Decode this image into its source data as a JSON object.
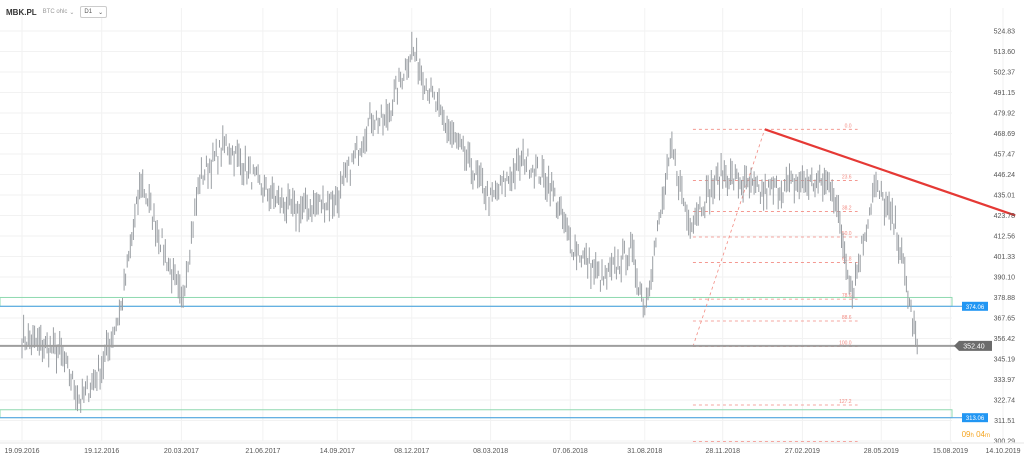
{
  "toolbar": {
    "symbol": "MBK.PL",
    "chart_type": "BTC ohlc",
    "interval": "D1"
  },
  "countdown": {
    "hours": "09",
    "h_unit": "h",
    "minutes": "04",
    "m_unit": "m"
  },
  "colors": {
    "price": "#9a9ea3",
    "zone_green": "#8fd9b0",
    "zone_blue": "#5aa8e6",
    "label_blue": "#2196f3",
    "trendline": "#e53935",
    "fib": "#f28b82",
    "current": "#9e9e9e",
    "countdown": "#f5a623"
  },
  "chart_data": {
    "type": "line",
    "title": "",
    "xlabel": "",
    "ylabel": "",
    "ylim": [
      300.29,
      530
    ],
    "x_tick_labels": [
      "19.09.2016",
      "19.12.2016",
      "20.03.2017",
      "21.06.2017",
      "14.09.2017",
      "08.12.2017",
      "08.03.2018",
      "07.06.2018",
      "31.08.2018",
      "28.11.2018",
      "27.02.2019",
      "28.05.2019",
      "15.08.2019",
      "14.10.2019"
    ],
    "y_ticks": [
      524.83,
      513.6,
      502.37,
      491.15,
      479.92,
      468.69,
      457.47,
      446.24,
      435.01,
      423.78,
      412.56,
      401.33,
      390.1,
      378.88,
      367.65,
      356.42,
      345.19,
      333.97,
      322.74,
      311.51,
      300.29
    ],
    "y_tick_labels": [
      "524.83",
      "513.60",
      "502.37",
      "491.15",
      "479.92",
      "468.69",
      "457.47",
      "446.24",
      "435.01",
      "423.78",
      "412.56",
      "401.33",
      "390.10",
      "378.88",
      "367.65",
      "356.42",
      "345.19",
      "333.97",
      "322.74",
      "311.51",
      "300.29"
    ],
    "series": [
      {
        "x": [
          "19.09.2016",
          "01.11.2016",
          "25.11.2016",
          "19.12.2016",
          "10.01.2017",
          "02.02.2017",
          "20.03.2017",
          "10.04.2017",
          "10.05.2017",
          "21.06.2017",
          "27.07.2017",
          "14.09.2017",
          "23.10.2017",
          "07.11.2017",
          "08.12.2017",
          "10.01.2018",
          "08.03.2018",
          "16.04.2018",
          "15.05.2018",
          "07.06.2018",
          "15.07.2018",
          "15.08.2018",
          "31.08.2018",
          "01.10.2018",
          "20.10.2018",
          "28.11.2018",
          "10.01.2019",
          "27.02.2019",
          "02.04.2019",
          "25.04.2019",
          "20.05.2019",
          "28.05.2019",
          "15.06.2019",
          "01.07.2019",
          "08.07.2019"
        ],
        "values": [
          357,
          349,
          322,
          341,
          373,
          443,
          376,
          444,
          463,
          438,
          426,
          433,
          478,
          474,
          515,
          478,
          432,
          455,
          441,
          409,
          388,
          405,
          374,
          460,
          420,
          447,
          436,
          442,
          441,
          382,
          439,
          434,
          415,
          371,
          352
        ]
      }
    ],
    "zones": [
      {
        "low": 374.06,
        "high": 378.9,
        "label": "374.06"
      },
      {
        "low": 313.06,
        "high": 317.4,
        "label": "313.06"
      }
    ],
    "current_price": {
      "value": 352.4,
      "label": "352.40"
    },
    "trendline": {
      "from": [
        "15.01.2019",
        471.0
      ],
      "to": [
        "28.10.2019",
        423.8
      ]
    },
    "fibonacci": {
      "levels": [
        {
          "label": "0.0",
          "value": 471.0
        },
        {
          "label": "23.6",
          "value": 443.0
        },
        {
          "label": "38.2",
          "value": 426.0
        },
        {
          "label": "50.0",
          "value": 412.0
        },
        {
          "label": "61.8",
          "value": 398.0
        },
        {
          "label": "78.6",
          "value": 378.0
        },
        {
          "label": "88.6",
          "value": 366.0
        },
        {
          "label": "100.0",
          "value": 352.0
        },
        {
          "label": "127.2",
          "value": 320.0
        },
        {
          "label": "",
          "value": 300.0
        }
      ],
      "x_from": "25.10.2018",
      "x_to": "01.05.2019"
    },
    "grid": true,
    "legend": "none"
  }
}
